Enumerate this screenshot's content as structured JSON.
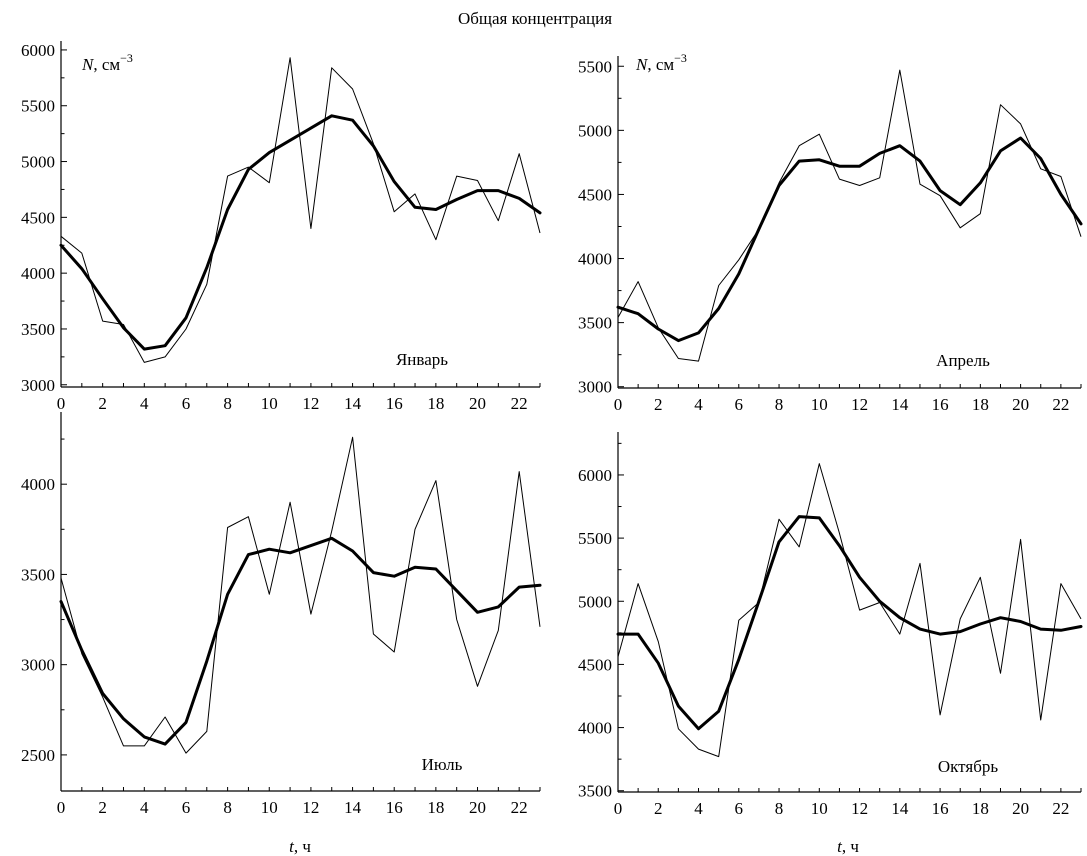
{
  "figure_title": "Общая концентрация",
  "colors": {
    "raw": "#000000",
    "smooth": "#000000",
    "axis": "#000000"
  },
  "chart_data": [
    {
      "type": "line",
      "panel_label": "Январь",
      "ylabel_var": "N",
      "ylabel_rest": ", см",
      "ylabel_sup": "−3",
      "xlabel_var": "",
      "xlabel_rest": "",
      "xlim": [
        0,
        23
      ],
      "ylim": [
        2980,
        6080
      ],
      "x_ticks": [
        0,
        2,
        4,
        6,
        8,
        10,
        12,
        14,
        16,
        18,
        20,
        22
      ],
      "y_ticks": [
        3000,
        3500,
        4000,
        4500,
        5000,
        5500,
        6000
      ],
      "x": [
        0,
        1,
        2,
        3,
        4,
        5,
        6,
        7,
        8,
        9,
        10,
        11,
        12,
        13,
        14,
        15,
        16,
        17,
        18,
        19,
        20,
        21,
        22,
        23
      ],
      "series": [
        {
          "values": [
            4330,
            4180,
            3570,
            3540,
            3200,
            3250,
            3500,
            3900,
            4870,
            4950,
            4810,
            5930,
            4400,
            5840,
            5650,
            5160,
            4550,
            4710,
            4300,
            4870,
            4830,
            4470,
            5070,
            4360
          ]
        },
        {
          "values": [
            4250,
            4040,
            3770,
            3510,
            3320,
            3350,
            3600,
            4050,
            4570,
            4930,
            5080,
            5190,
            5300,
            5410,
            5370,
            5140,
            4820,
            4590,
            4570,
            4660,
            4740,
            4740,
            4670,
            4540
          ]
        }
      ]
    },
    {
      "type": "line",
      "panel_label": "Апрель",
      "ylabel_var": "N",
      "ylabel_rest": ", см",
      "ylabel_sup": "−3",
      "xlabel_var": "",
      "xlabel_rest": "",
      "xlim": [
        0,
        23
      ],
      "ylim": [
        2990,
        5580
      ],
      "x_ticks": [
        0,
        2,
        4,
        6,
        8,
        10,
        12,
        14,
        16,
        18,
        20,
        22
      ],
      "y_ticks": [
        3000,
        3500,
        4000,
        4500,
        5000,
        5500
      ],
      "x": [
        0,
        1,
        2,
        3,
        4,
        5,
        6,
        7,
        8,
        9,
        10,
        11,
        12,
        13,
        14,
        15,
        16,
        17,
        18,
        19,
        20,
        21,
        22,
        23
      ],
      "series": [
        {
          "values": [
            3540,
            3820,
            3460,
            3220,
            3200,
            3790,
            3990,
            4230,
            4590,
            4880,
            4970,
            4620,
            4570,
            4630,
            5470,
            4580,
            4490,
            4240,
            4350,
            5200,
            5050,
            4700,
            4640,
            4170
          ]
        },
        {
          "values": [
            3620,
            3570,
            3450,
            3360,
            3420,
            3610,
            3880,
            4230,
            4570,
            4760,
            4770,
            4720,
            4720,
            4820,
            4880,
            4760,
            4530,
            4420,
            4590,
            4840,
            4940,
            4780,
            4500,
            4270
          ]
        }
      ]
    },
    {
      "type": "line",
      "panel_label": "Июль",
      "ylabel_var": "",
      "ylabel_rest": "",
      "ylabel_sup": "",
      "xlabel_var": "t",
      "xlabel_rest": ", ч",
      "xlim": [
        0,
        23
      ],
      "ylim": [
        2300,
        4400
      ],
      "x_ticks": [
        0,
        2,
        4,
        6,
        8,
        10,
        12,
        14,
        16,
        18,
        20,
        22
      ],
      "y_ticks": [
        2500,
        3000,
        3500,
        4000
      ],
      "x": [
        0,
        1,
        2,
        3,
        4,
        5,
        6,
        7,
        8,
        9,
        10,
        11,
        12,
        13,
        14,
        15,
        16,
        17,
        18,
        19,
        20,
        21,
        22,
        23
      ],
      "series": [
        {
          "values": [
            3480,
            3060,
            2820,
            2550,
            2550,
            2710,
            2510,
            2630,
            3760,
            3820,
            3390,
            3900,
            3280,
            3740,
            4260,
            3170,
            3070,
            3750,
            4020,
            3250,
            2880,
            3190,
            4070,
            3210
          ]
        },
        {
          "values": [
            3350,
            3080,
            2840,
            2700,
            2600,
            2560,
            2680,
            3020,
            3390,
            3610,
            3640,
            3620,
            3660,
            3700,
            3630,
            3510,
            3490,
            3540,
            3530,
            3410,
            3290,
            3320,
            3430,
            3440
          ]
        }
      ]
    },
    {
      "type": "line",
      "panel_label": "Октябрь",
      "ylabel_var": "",
      "ylabel_rest": "",
      "ylabel_sup": "",
      "xlabel_var": "t",
      "xlabel_rest": ", ч",
      "xlim": [
        0,
        23
      ],
      "ylim": [
        3490,
        6340
      ],
      "x_ticks": [
        0,
        2,
        4,
        6,
        8,
        10,
        12,
        14,
        16,
        18,
        20,
        22
      ],
      "y_ticks": [
        3500,
        4000,
        4500,
        5000,
        5500,
        6000
      ],
      "x": [
        0,
        1,
        2,
        3,
        4,
        5,
        6,
        7,
        8,
        9,
        10,
        11,
        12,
        13,
        14,
        15,
        16,
        17,
        18,
        19,
        20,
        21,
        22,
        23
      ],
      "series": [
        {
          "values": [
            4560,
            5140,
            4680,
            3990,
            3830,
            3770,
            4850,
            4990,
            5650,
            5430,
            6090,
            5540,
            4930,
            4990,
            4740,
            5300,
            4100,
            4860,
            5190,
            4430,
            5490,
            4060,
            5140,
            4860
          ]
        },
        {
          "values": [
            4740,
            4740,
            4510,
            4170,
            3990,
            4130,
            4540,
            5000,
            5470,
            5670,
            5660,
            5440,
            5190,
            5000,
            4870,
            4780,
            4740,
            4760,
            4820,
            4870,
            4840,
            4780,
            4770,
            4800
          ]
        }
      ]
    }
  ]
}
